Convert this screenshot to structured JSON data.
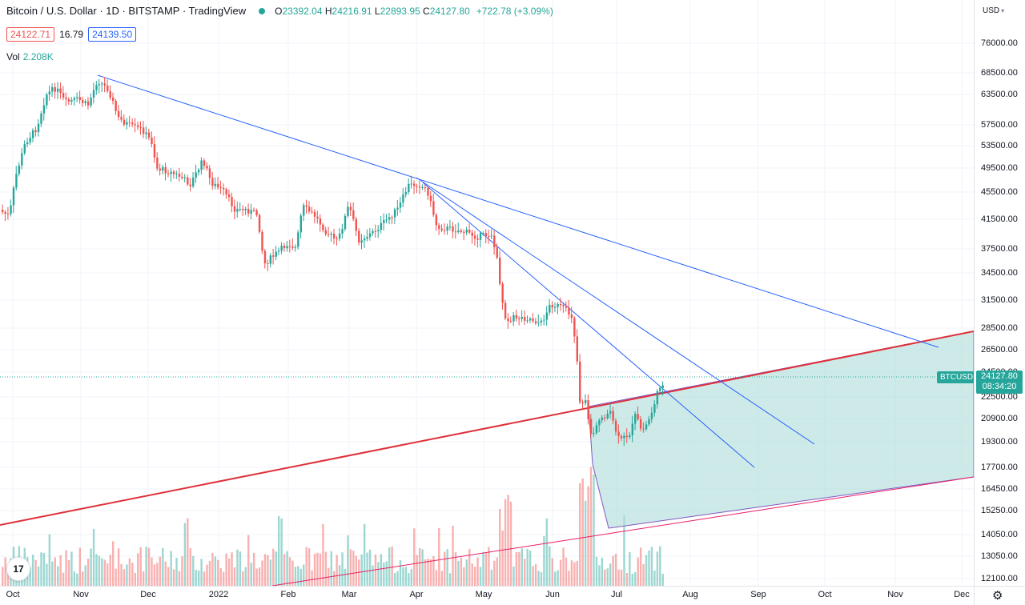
{
  "header": {
    "title": "Bitcoin / U.S. Dollar · 1D · BITSTAMP · TradingView",
    "ohlc": {
      "o_label": "O",
      "o": "23392.04",
      "h_label": "H",
      "h": "24216.91",
      "l_label": "L",
      "l": "22893.95",
      "c_label": "C",
      "c": "24127.80",
      "change": "+722.78 (+3.09%)"
    },
    "bid": "24122.71",
    "spread": "16.79",
    "ask": "24139.50",
    "vol_label": "Vol",
    "vol_value": "2.208K"
  },
  "price_scale": {
    "currency": "USD",
    "ticks": [
      "76000.00",
      "68500.00",
      "63500.00",
      "57500.00",
      "53500.00",
      "49500.00",
      "45500.00",
      "41500.00",
      "37500.00",
      "34500.00",
      "31500.00",
      "28500.00",
      "26500.00",
      "24500.00",
      "22500.00",
      "20900.00",
      "19300.00",
      "17700.00",
      "16450.00",
      "15250.00",
      "14050.00",
      "13050.00",
      "12100.00"
    ],
    "last_price": "24127.80",
    "countdown": "08:34:20"
  },
  "symbol_label": "BTCUSD",
  "time_scale": {
    "ticks": [
      "Oct",
      "Nov",
      "Dec",
      "2022",
      "Feb",
      "Mar",
      "Apr",
      "May",
      "Jun",
      "Jul",
      "Aug",
      "Sep",
      "Oct",
      "Nov",
      "Dec"
    ]
  },
  "logo_text": "17",
  "colors": {
    "up": "#26a69a",
    "down": "#ef5350",
    "trendline": "#2962ff",
    "support": "#e91e63",
    "channel_fill": "#b2dfdb"
  }
}
